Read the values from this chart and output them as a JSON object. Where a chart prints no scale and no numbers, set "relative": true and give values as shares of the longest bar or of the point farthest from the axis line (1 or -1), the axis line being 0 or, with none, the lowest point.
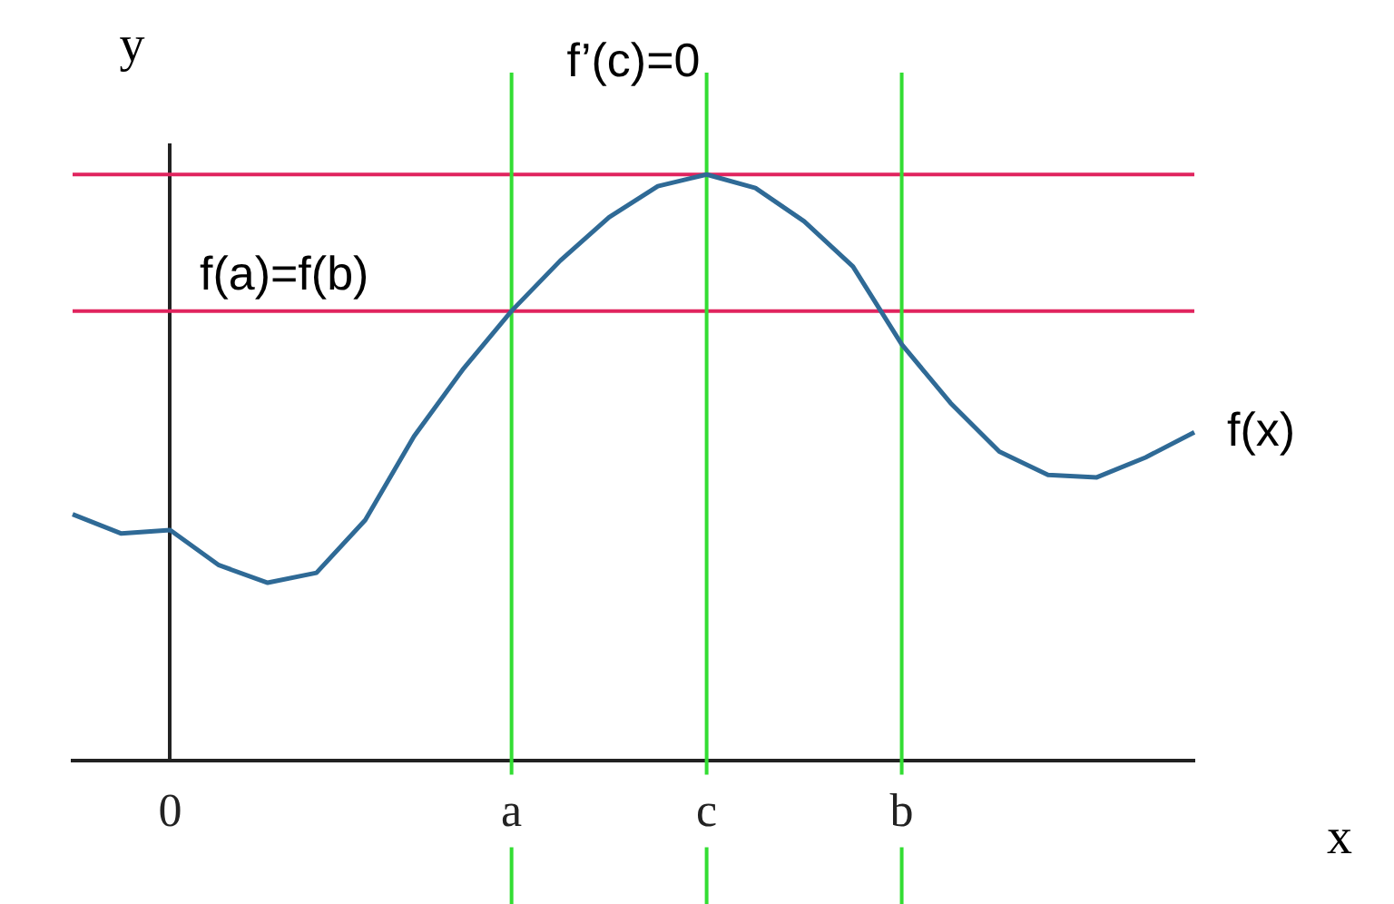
{
  "chart_data": {
    "type": "line",
    "relative": true,
    "xlabel": "x",
    "ylabel": "y",
    "legend": false,
    "grid": false,
    "marker": "none",
    "line_style": "solid",
    "categories": [
      null,
      null,
      "0",
      null,
      null,
      null,
      null,
      null,
      null,
      "a",
      null,
      null,
      null,
      "c",
      null,
      null,
      null,
      "b",
      null,
      null,
      null,
      null,
      null,
      null
    ],
    "series": [
      {
        "name": "f(x)",
        "color": "#2f6a96",
        "values": [
          0.42,
          0.387,
          0.393,
          0.333,
          0.303,
          0.32,
          0.41,
          0.553,
          0.667,
          0.767,
          0.853,
          0.927,
          0.98,
          1,
          0.977,
          0.92,
          0.843,
          0.71,
          0.61,
          0.527,
          0.487,
          0.483,
          0.517,
          0.56
        ]
      }
    ],
    "annotations": [
      "f’(c)=0"
    ],
    "ref_lines": [
      {
        "axis": "y",
        "value": 0.767,
        "label": "f(a)=f(b)",
        "color": "#e0245e"
      },
      {
        "axis": "y",
        "value": 1,
        "color": "#e0245e"
      },
      {
        "axis": "x",
        "value": "a",
        "color": "#33dd33"
      },
      {
        "axis": "x",
        "value": "c",
        "color": "#33dd33"
      },
      {
        "axis": "x",
        "value": "b",
        "color": "#33dd33"
      }
    ]
  }
}
